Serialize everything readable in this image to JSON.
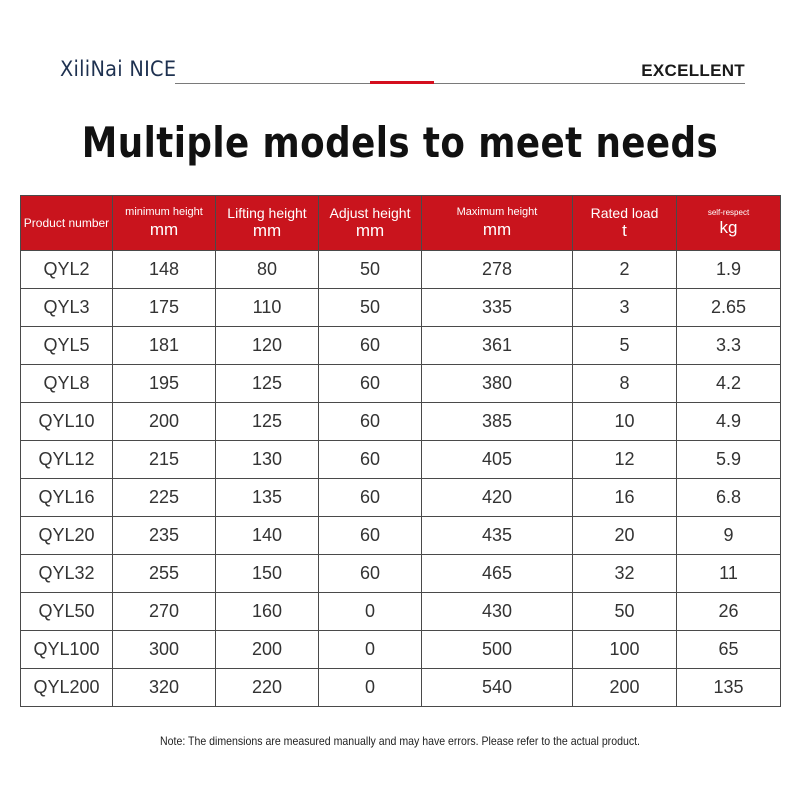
{
  "header": {
    "brand": "XiliNai NICE",
    "tagline": "EXCELLENT",
    "accent_color": "#d40f1e"
  },
  "title": "Multiple models to meet needs",
  "table": {
    "header_color": "#c9141d",
    "columns": [
      {
        "label": "Product number",
        "unit": ""
      },
      {
        "label": "minimum height",
        "unit": "mm"
      },
      {
        "label": "Lifting height",
        "unit": "mm"
      },
      {
        "label": "Adjust height",
        "unit": "mm"
      },
      {
        "label": "Maximum height",
        "unit": "mm"
      },
      {
        "label": "Rated load",
        "unit": "t"
      },
      {
        "label": "self-respect",
        "unit": "kg"
      }
    ],
    "rows": [
      [
        "QYL2",
        "148",
        "80",
        "50",
        "278",
        "2",
        "1.9"
      ],
      [
        "QYL3",
        "175",
        "110",
        "50",
        "335",
        "3",
        "2.65"
      ],
      [
        "QYL5",
        "181",
        "120",
        "60",
        "361",
        "5",
        "3.3"
      ],
      [
        "QYL8",
        "195",
        "125",
        "60",
        "380",
        "8",
        "4.2"
      ],
      [
        "QYL10",
        "200",
        "125",
        "60",
        "385",
        "10",
        "4.9"
      ],
      [
        "QYL12",
        "215",
        "130",
        "60",
        "405",
        "12",
        "5.9"
      ],
      [
        "QYL16",
        "225",
        "135",
        "60",
        "420",
        "16",
        "6.8"
      ],
      [
        "QYL20",
        "235",
        "140",
        "60",
        "435",
        "20",
        "9"
      ],
      [
        "QYL32",
        "255",
        "150",
        "60",
        "465",
        "32",
        "11"
      ],
      [
        "QYL50",
        "270",
        "160",
        "0",
        "430",
        "50",
        "26"
      ],
      [
        "QYL100",
        "300",
        "200",
        "0",
        "500",
        "100",
        "65"
      ],
      [
        "QYL200",
        "320",
        "220",
        "0",
        "540",
        "200",
        "135"
      ]
    ]
  },
  "note": "Note: The dimensions are measured manually and may have errors. Please refer to the actual product."
}
